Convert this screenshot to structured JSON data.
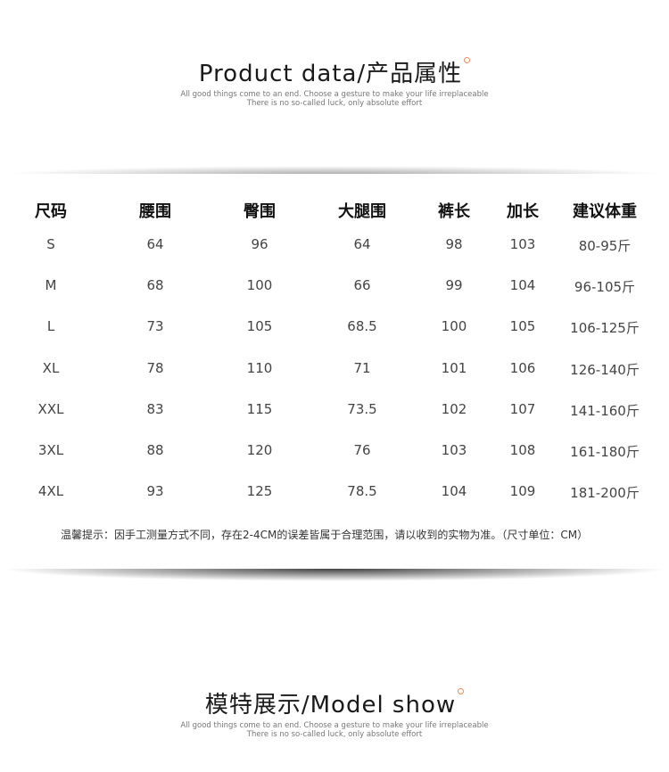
{
  "product_section": {
    "title": "Product data/产品属性",
    "sub1": "All good things come to an end. Choose a gesture to make your life irreplaceable",
    "sub2": "There is no so-called luck, only absolute effort"
  },
  "size_table": {
    "headers": [
      "尺码",
      "腰围",
      "臀围",
      "大腿围",
      "裤长",
      "加长",
      "建议体重"
    ],
    "rows": [
      [
        "S",
        "64",
        "96",
        "64",
        "98",
        "103",
        "80-95斤"
      ],
      [
        "M",
        "68",
        "100",
        "66",
        "99",
        "104",
        "96-105斤"
      ],
      [
        "L",
        "73",
        "105",
        "68.5",
        "100",
        "105",
        "106-125斤"
      ],
      [
        "XL",
        "78",
        "110",
        "71",
        "101",
        "106",
        "126-140斤"
      ],
      [
        "XXL",
        "83",
        "115",
        "73.5",
        "102",
        "107",
        "141-160斤"
      ],
      [
        "3XL",
        "88",
        "120",
        "76",
        "103",
        "108",
        "161-180斤"
      ],
      [
        "4XL",
        "93",
        "125",
        "78.5",
        "104",
        "109",
        "181-200斤"
      ]
    ],
    "note": "温馨提示：因手工测量方式不同，存在2-4CM的误差皆属于合理范围，请以收到的实物为准。（尺寸单位：CM）"
  },
  "model_section": {
    "title": "模特展示/Model show",
    "sub1": "All good things come to an end. Choose a gesture to make your life irreplaceable",
    "sub2": "There is no so-called luck, only absolute effort"
  },
  "colors": {
    "accent_dot": "#f08a5d"
  }
}
